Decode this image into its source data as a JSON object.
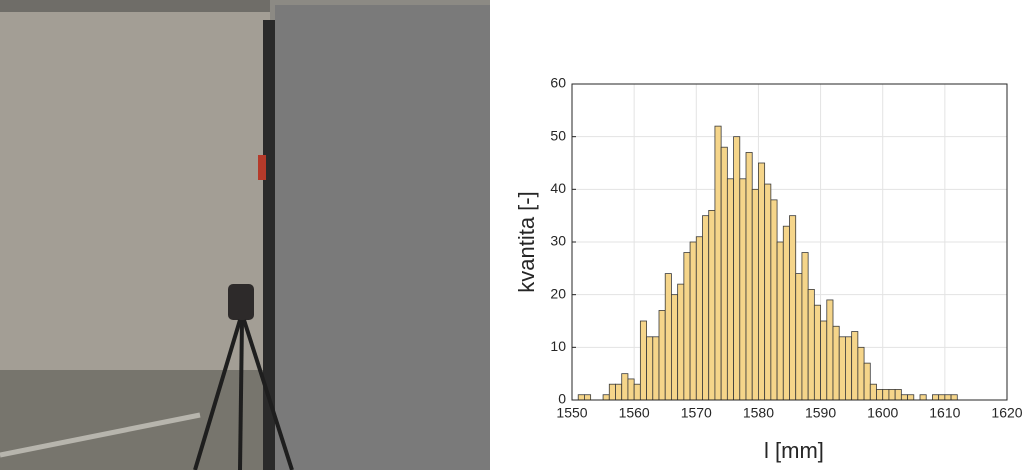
{
  "chart_data": {
    "type": "histogram",
    "xlabel": "l [mm]",
    "ylabel": "kvantita [-]",
    "bins": [
      1551,
      1552,
      1553,
      1554,
      1555,
      1556,
      1557,
      1558,
      1559,
      1560,
      1561,
      1562,
      1563,
      1564,
      1565,
      1566,
      1567,
      1568,
      1569,
      1570,
      1571,
      1572,
      1573,
      1574,
      1575,
      1576,
      1577,
      1578,
      1579,
      1580,
      1581,
      1582,
      1583,
      1584,
      1585,
      1586,
      1587,
      1588,
      1589,
      1590,
      1591,
      1592,
      1593,
      1594,
      1595,
      1596,
      1597,
      1598,
      1599,
      1600,
      1601,
      1602,
      1603,
      1604,
      1605,
      1606,
      1607,
      1608,
      1609,
      1610,
      1611,
      1612
    ],
    "values": [
      1,
      1,
      0,
      0,
      1,
      3,
      3,
      5,
      4,
      3,
      15,
      12,
      12,
      17,
      24,
      20,
      22,
      28,
      30,
      31,
      35,
      36,
      52,
      48,
      42,
      50,
      42,
      47,
      40,
      45,
      41,
      38,
      30,
      33,
      35,
      24,
      28,
      21,
      18,
      15,
      19,
      14,
      12,
      12,
      13,
      10,
      7,
      3,
      2,
      2,
      2,
      2,
      1,
      1,
      0,
      1,
      0,
      1,
      1,
      1,
      1
    ],
    "color": "#f5d58a",
    "edgecolor": "#3a3a3a",
    "xlim": [
      1550,
      1620
    ],
    "xticks": [
      1550,
      1560,
      1570,
      1580,
      1590,
      1600,
      1610,
      1620
    ],
    "ylim": [
      0,
      60
    ],
    "yticks": [
      0,
      10,
      20,
      30,
      40,
      50,
      60
    ],
    "grid": true
  }
}
